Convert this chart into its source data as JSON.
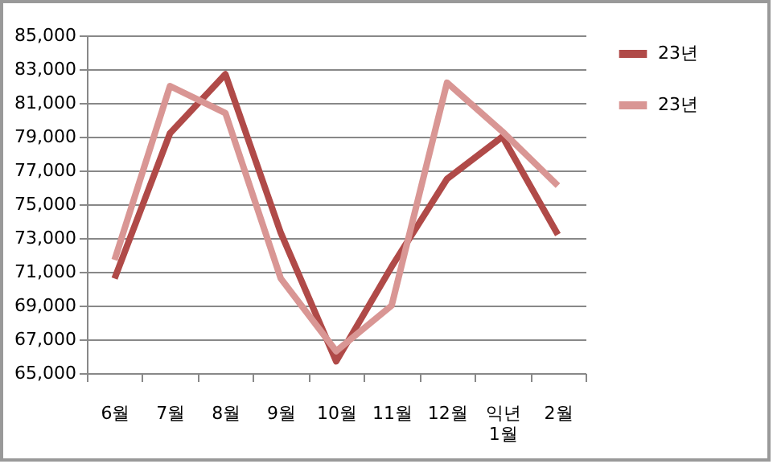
{
  "chart_data": {
    "type": "line",
    "categories": [
      "6월",
      "7월",
      "8월",
      "9월",
      "10월",
      "11월",
      "12월",
      "익년\n1월",
      "2월"
    ],
    "series": [
      {
        "name": "23년",
        "color": "#b04a48",
        "values": [
          70600,
          79200,
          82700,
          73300,
          65700,
          71300,
          76500,
          79000,
          73200
        ]
      },
      {
        "name": "23년",
        "color": "#d99694",
        "values": [
          71700,
          82000,
          80400,
          70600,
          66300,
          69000,
          82200,
          79300,
          76100
        ]
      }
    ],
    "ylim": [
      65000,
      85000
    ],
    "yticks": [
      {
        "value": 65000,
        "label": "65,000"
      },
      {
        "value": 67000,
        "label": "67,000"
      },
      {
        "value": 69000,
        "label": "69,000"
      },
      {
        "value": 71000,
        "label": "71,000"
      },
      {
        "value": 73000,
        "label": "73,000"
      },
      {
        "value": 75000,
        "label": "75,000"
      },
      {
        "value": 77000,
        "label": "77,000"
      },
      {
        "value": 79000,
        "label": "79,000"
      },
      {
        "value": 81000,
        "label": "81,000"
      },
      {
        "value": 83000,
        "label": "83,000"
      },
      {
        "value": 85000,
        "label": "85,000"
      }
    ],
    "grid": "y",
    "legend": "right",
    "marker": "none",
    "line_style": "solid"
  }
}
